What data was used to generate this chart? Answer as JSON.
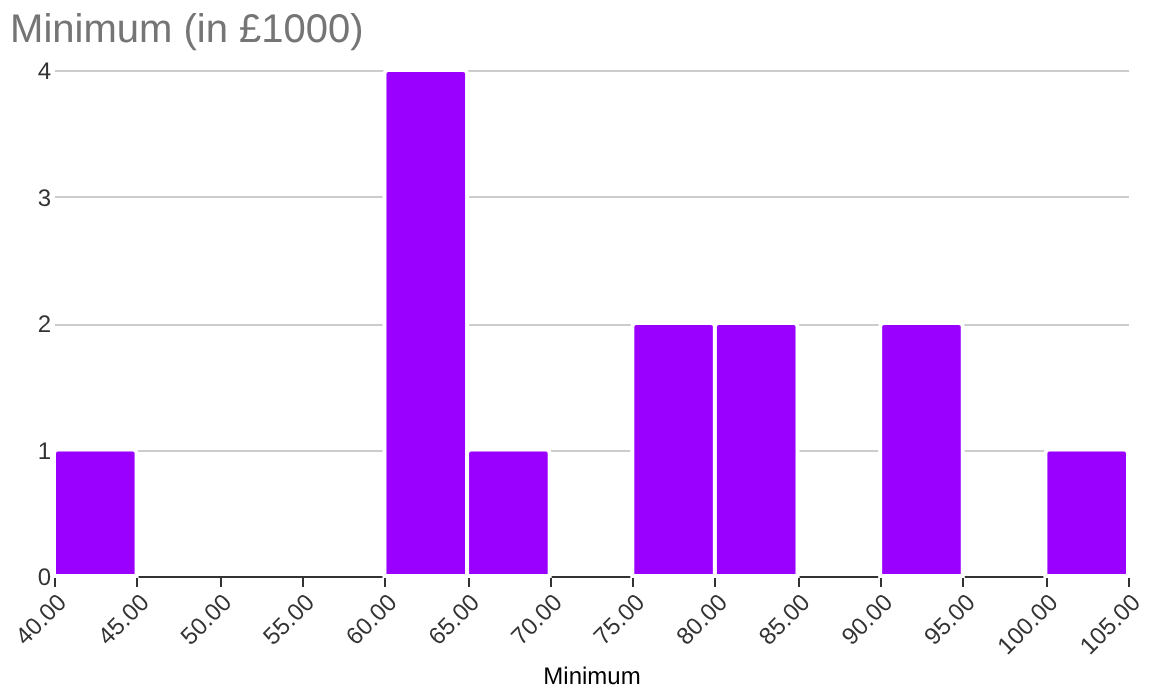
{
  "chart_data": {
    "type": "histogram",
    "title": "Minimum (in £1000)",
    "xlabel": "Minimum",
    "bins": [
      40,
      45,
      50,
      55,
      60,
      65,
      70,
      75,
      80,
      85,
      90,
      95,
      100,
      105
    ],
    "values": [
      1,
      0,
      0,
      0,
      4,
      1,
      0,
      2,
      2,
      0,
      2,
      0,
      1
    ],
    "color": "#9900ff",
    "xlim": [
      40,
      105
    ],
    "xticks": [
      {
        "value": 40,
        "label": "40.00"
      },
      {
        "value": 45,
        "label": "45.00"
      },
      {
        "value": 50,
        "label": "50.00"
      },
      {
        "value": 55,
        "label": "55.00"
      },
      {
        "value": 60,
        "label": "60.00"
      },
      {
        "value": 65,
        "label": "65.00"
      },
      {
        "value": 70,
        "label": "70.00"
      },
      {
        "value": 75,
        "label": "75.00"
      },
      {
        "value": 80,
        "label": "80.00"
      },
      {
        "value": 85,
        "label": "85.00"
      },
      {
        "value": 90,
        "label": "90.00"
      },
      {
        "value": 95,
        "label": "95.00"
      },
      {
        "value": 100,
        "label": "100.00"
      },
      {
        "value": 105,
        "label": "105.00"
      }
    ],
    "ylim": [
      0,
      4
    ],
    "yticks": [
      0,
      1,
      2,
      3,
      4
    ],
    "grid": "y"
  }
}
